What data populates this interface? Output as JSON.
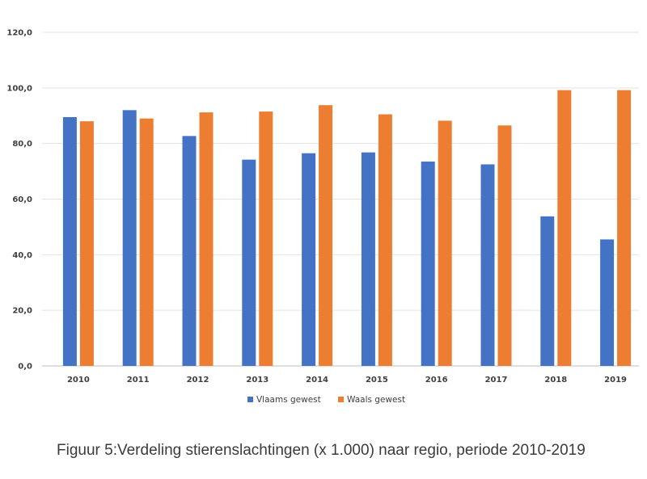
{
  "chart_data": {
    "type": "bar",
    "title": "",
    "xlabel": "",
    "ylabel": "",
    "ylim": [
      0,
      120
    ],
    "yticks": [
      "0,0",
      "20,0",
      "40,0",
      "60,0",
      "80,0",
      "100,0",
      "120,0"
    ],
    "ytick_values": [
      0,
      20,
      40,
      60,
      80,
      100,
      120
    ],
    "grid": true,
    "legend_position": "bottom",
    "categories": [
      "2010",
      "2011",
      "2012",
      "2013",
      "2014",
      "2015",
      "2016",
      "2017",
      "2018",
      "2019"
    ],
    "series": [
      {
        "name": "Vlaams gewest",
        "color": "#4472c4",
        "values": [
          89.5,
          92.0,
          82.7,
          74.2,
          76.5,
          76.8,
          73.5,
          72.5,
          53.8,
          45.5
        ]
      },
      {
        "name": "Waals gewest",
        "color": "#ed7d31",
        "values": [
          88.0,
          89.0,
          91.2,
          91.5,
          93.8,
          90.5,
          88.2,
          86.5,
          99.2,
          99.2
        ]
      }
    ]
  },
  "caption": "Figuur 5:Verdeling stierenslachtingen (x 1.000) naar regio, periode 2010-2019"
}
